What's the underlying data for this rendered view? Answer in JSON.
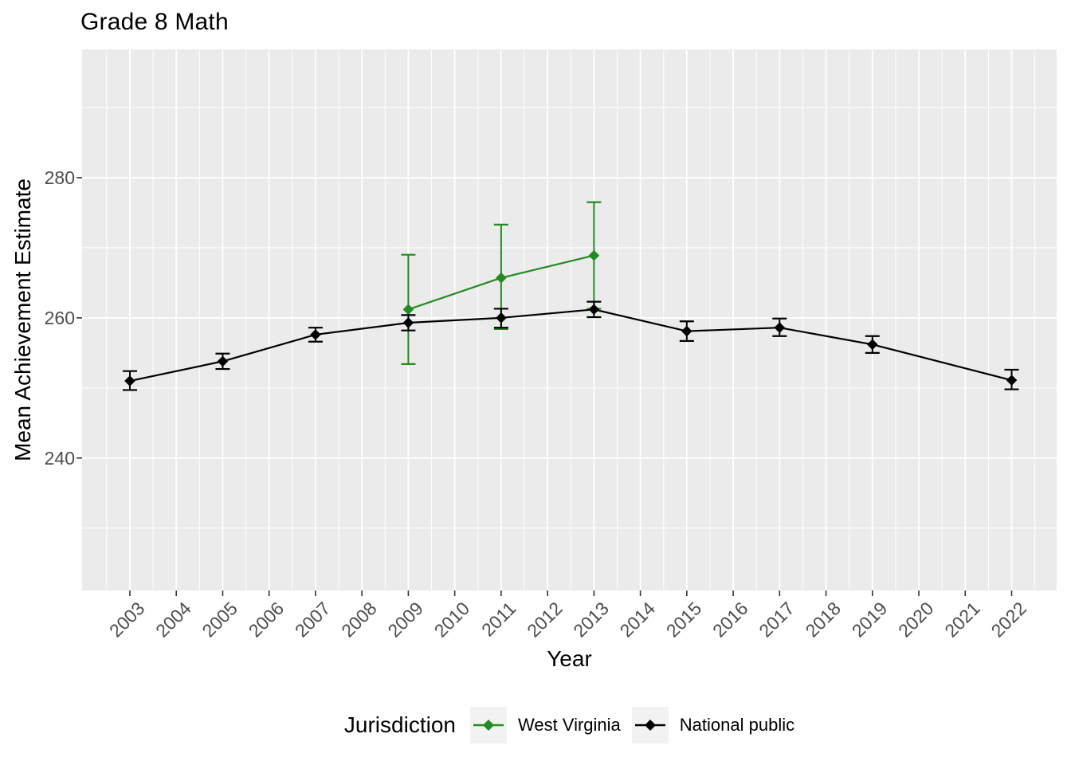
{
  "legend": {
    "title": "Jurisdiction",
    "items": [
      {
        "label": "West Virginia",
        "color": "#228B22"
      },
      {
        "label": "National public",
        "color": "#000000"
      }
    ]
  },
  "style": {
    "panel_bg": "#EBEBEB",
    "grid_color": "#FFFFFF",
    "tick_mark_color": "#333333",
    "tick_label_color": "#4D4D4D",
    "axis_title_color": "#000000",
    "legend_key_bg": "#F2F2F2"
  },
  "chart_data": {
    "type": "line",
    "title": "Grade 8 Math",
    "xlabel": "Year",
    "ylabel": "Mean Achievement Estimate",
    "x_ticks": [
      2003,
      2004,
      2005,
      2006,
      2007,
      2008,
      2009,
      2010,
      2011,
      2012,
      2013,
      2014,
      2015,
      2016,
      2017,
      2018,
      2019,
      2020,
      2021,
      2022
    ],
    "y_ticks": [
      240,
      260,
      280
    ],
    "y_minor": [
      230,
      250,
      270,
      290
    ],
    "xlim": [
      2001.97,
      2022.97
    ],
    "ylim": [
      221.1,
      298.3
    ],
    "grid": true,
    "legend_position": "bottom",
    "error_bars": true,
    "series": [
      {
        "name": "West Virginia",
        "color": "#228B22",
        "points": [
          {
            "year": 2009,
            "value": 261.2,
            "ci_low": 253.4,
            "ci_high": 269.0
          },
          {
            "year": 2011,
            "value": 265.7,
            "ci_low": 258.4,
            "ci_high": 273.3
          },
          {
            "year": 2013,
            "value": 268.9,
            "ci_low": 261.3,
            "ci_high": 276.5
          }
        ]
      },
      {
        "name": "National public",
        "color": "#000000",
        "points": [
          {
            "year": 2003,
            "value": 251.0,
            "ci_low": 249.7,
            "ci_high": 252.4
          },
          {
            "year": 2005,
            "value": 253.8,
            "ci_low": 252.7,
            "ci_high": 254.9
          },
          {
            "year": 2007,
            "value": 257.6,
            "ci_low": 256.6,
            "ci_high": 258.6
          },
          {
            "year": 2009,
            "value": 259.3,
            "ci_low": 258.2,
            "ci_high": 260.4
          },
          {
            "year": 2011,
            "value": 260.0,
            "ci_low": 258.6,
            "ci_high": 261.3
          },
          {
            "year": 2013,
            "value": 261.2,
            "ci_low": 260.1,
            "ci_high": 262.3
          },
          {
            "year": 2015,
            "value": 258.1,
            "ci_low": 256.7,
            "ci_high": 259.5
          },
          {
            "year": 2017,
            "value": 258.6,
            "ci_low": 257.4,
            "ci_high": 259.9
          },
          {
            "year": 2019,
            "value": 256.2,
            "ci_low": 255.0,
            "ci_high": 257.4
          },
          {
            "year": 2022,
            "value": 251.1,
            "ci_low": 249.8,
            "ci_high": 252.6
          }
        ]
      }
    ]
  }
}
